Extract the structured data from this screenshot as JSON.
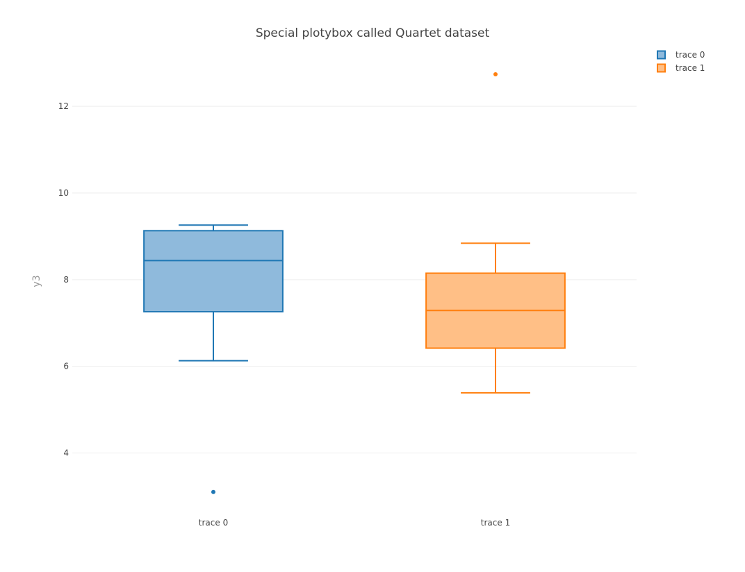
{
  "chart_data": {
    "type": "box",
    "title": "Special plotybox called Quartet dataset",
    "xlabel": "",
    "ylabel": "y3",
    "ylim": [
      2.6,
      13.3
    ],
    "yticks": [
      4,
      6,
      8,
      10,
      12
    ],
    "ytick_labels": [
      "4",
      "6",
      "8",
      "10",
      "12"
    ],
    "grid": true,
    "legend_position": "top-right",
    "categories": [
      "trace 0",
      "trace 1"
    ],
    "series": [
      {
        "name": "trace 0",
        "color": "#1f77b4",
        "fill": "#8fbadc",
        "lower_whisker": 6.13,
        "q1": 7.26,
        "median": 8.44,
        "q3": 9.13,
        "upper_whisker": 9.26,
        "outliers": [
          3.1
        ]
      },
      {
        "name": "trace 1",
        "color": "#ff7f0e",
        "fill": "#ffbf86",
        "lower_whisker": 5.39,
        "q1": 6.42,
        "median": 7.29,
        "q3": 8.15,
        "upper_whisker": 8.84,
        "outliers": [
          12.74
        ]
      }
    ]
  }
}
